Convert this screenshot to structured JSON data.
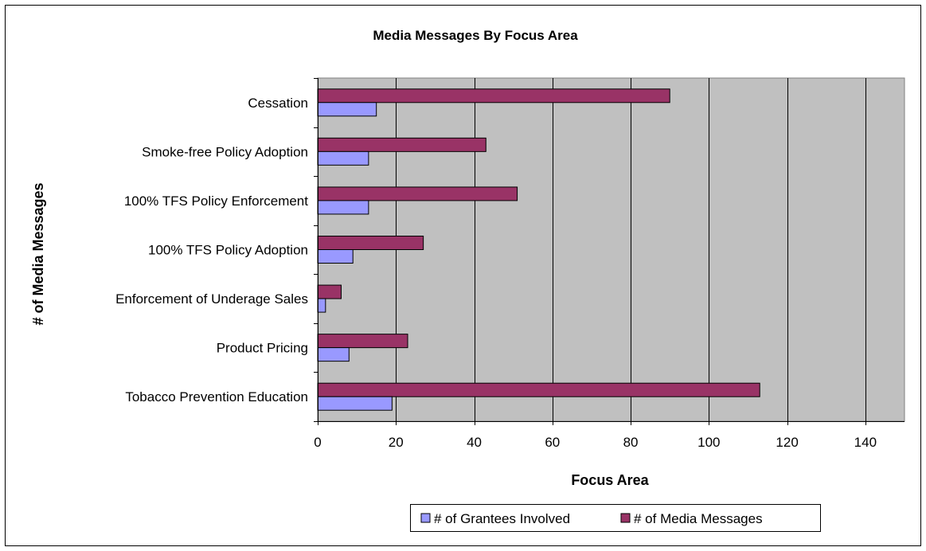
{
  "chart_data": {
    "type": "bar",
    "orientation": "horizontal",
    "title": "Media Messages By Focus Area",
    "xlabel": "Focus Area",
    "ylabel": "# of Media Messages",
    "categories": [
      "Cessation",
      "Smoke-free Policy Adoption",
      "100% TFS Policy Enforcement",
      "100% TFS Policy Adoption",
      "Enforcement of Underage Sales",
      "Product Pricing",
      "Tobacco Prevention Education"
    ],
    "series": [
      {
        "name": "# of Grantees Involved",
        "color": "#9999ff",
        "values": [
          15,
          13,
          13,
          9,
          2,
          8,
          19
        ]
      },
      {
        "name": "# of Media Messages",
        "color": "#993366",
        "values": [
          90,
          43,
          51,
          27,
          6,
          23,
          113
        ]
      }
    ],
    "xlim": [
      0,
      150
    ],
    "xticks": [
      0,
      20,
      40,
      60,
      80,
      100,
      120,
      140
    ],
    "grid": true,
    "plot_background": "#c0c0c0",
    "legend_position": "bottom"
  }
}
